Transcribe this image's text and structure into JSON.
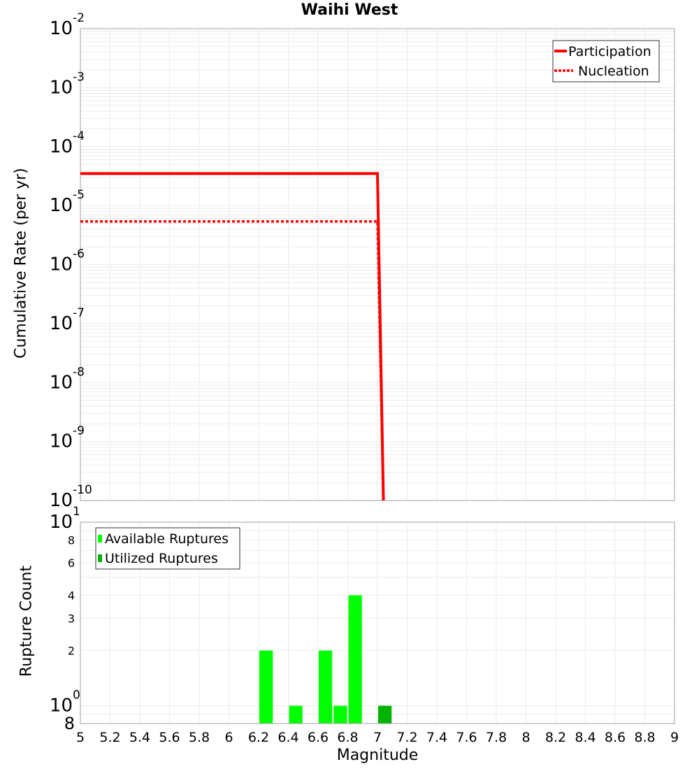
{
  "title": "Waihi West",
  "colors": {
    "participation": "#ff0000",
    "nucleation": "#ff0000",
    "available": "#00ff00",
    "utilized": "#00b400",
    "grid": "#ebebeb",
    "axis": "#a0a0a0"
  },
  "chart_data": [
    {
      "type": "line",
      "title": "Waihi West",
      "xlabel": "Magnitude",
      "ylabel": "Cumulative Rate (per yr)",
      "yscale": "log",
      "xlim": [
        5,
        9
      ],
      "ylim": [
        1e-10,
        0.01
      ],
      "grid": true,
      "legend_position": "upper right",
      "y_ticks": [
        "10^-2",
        "10^-3",
        "10^-4",
        "10^-5",
        "10^-6",
        "10^-7",
        "10^-8",
        "10^-9",
        "10^-10"
      ],
      "series": [
        {
          "name": "Participation",
          "style": "solid",
          "x": [
            5.0,
            7.0,
            7.04
          ],
          "y": [
            3.5e-05,
            3.5e-05,
            1e-10
          ]
        },
        {
          "name": "Nucleation",
          "style": "dotted",
          "x": [
            5.0,
            7.0,
            7.04
          ],
          "y": [
            5.4e-06,
            5.4e-06,
            1e-10
          ]
        }
      ]
    },
    {
      "type": "bar",
      "xlabel": "Magnitude",
      "ylabel": "Rupture Count",
      "yscale": "log",
      "xlim": [
        5,
        9
      ],
      "ylim": [
        0.8,
        10
      ],
      "grid": true,
      "legend_position": "upper left",
      "x_ticks": [
        "5",
        "5.2",
        "5.4",
        "5.6",
        "5.8",
        "6",
        "6.2",
        "6.4",
        "6.6",
        "6.8",
        "7",
        "7.2",
        "7.4",
        "7.6",
        "7.8",
        "8",
        "8.2",
        "8.4",
        "8.6",
        "8.8",
        "9"
      ],
      "y_ticks": [
        "8",
        "10^0",
        "2",
        "3",
        "4",
        "6",
        "8",
        "10^1"
      ],
      "series": [
        {
          "name": "Available Ruptures",
          "bins": [
            6.25,
            6.45,
            6.65,
            6.75,
            6.85
          ],
          "values": [
            2,
            1,
            2,
            1,
            4
          ]
        },
        {
          "name": "Utilized Ruptures",
          "bins": [
            7.05
          ],
          "values": [
            1
          ]
        }
      ]
    }
  ],
  "top_plot": {
    "ylabel": "Cumulative Rate (per yr)",
    "legend": [
      {
        "label": "Participation"
      },
      {
        "label": "Nucleation"
      }
    ]
  },
  "bottom_plot": {
    "ylabel": "Rupture Count",
    "xlabel": "Magnitude",
    "legend": [
      {
        "label": "Available Ruptures"
      },
      {
        "label": "Utilized Ruptures"
      }
    ]
  }
}
